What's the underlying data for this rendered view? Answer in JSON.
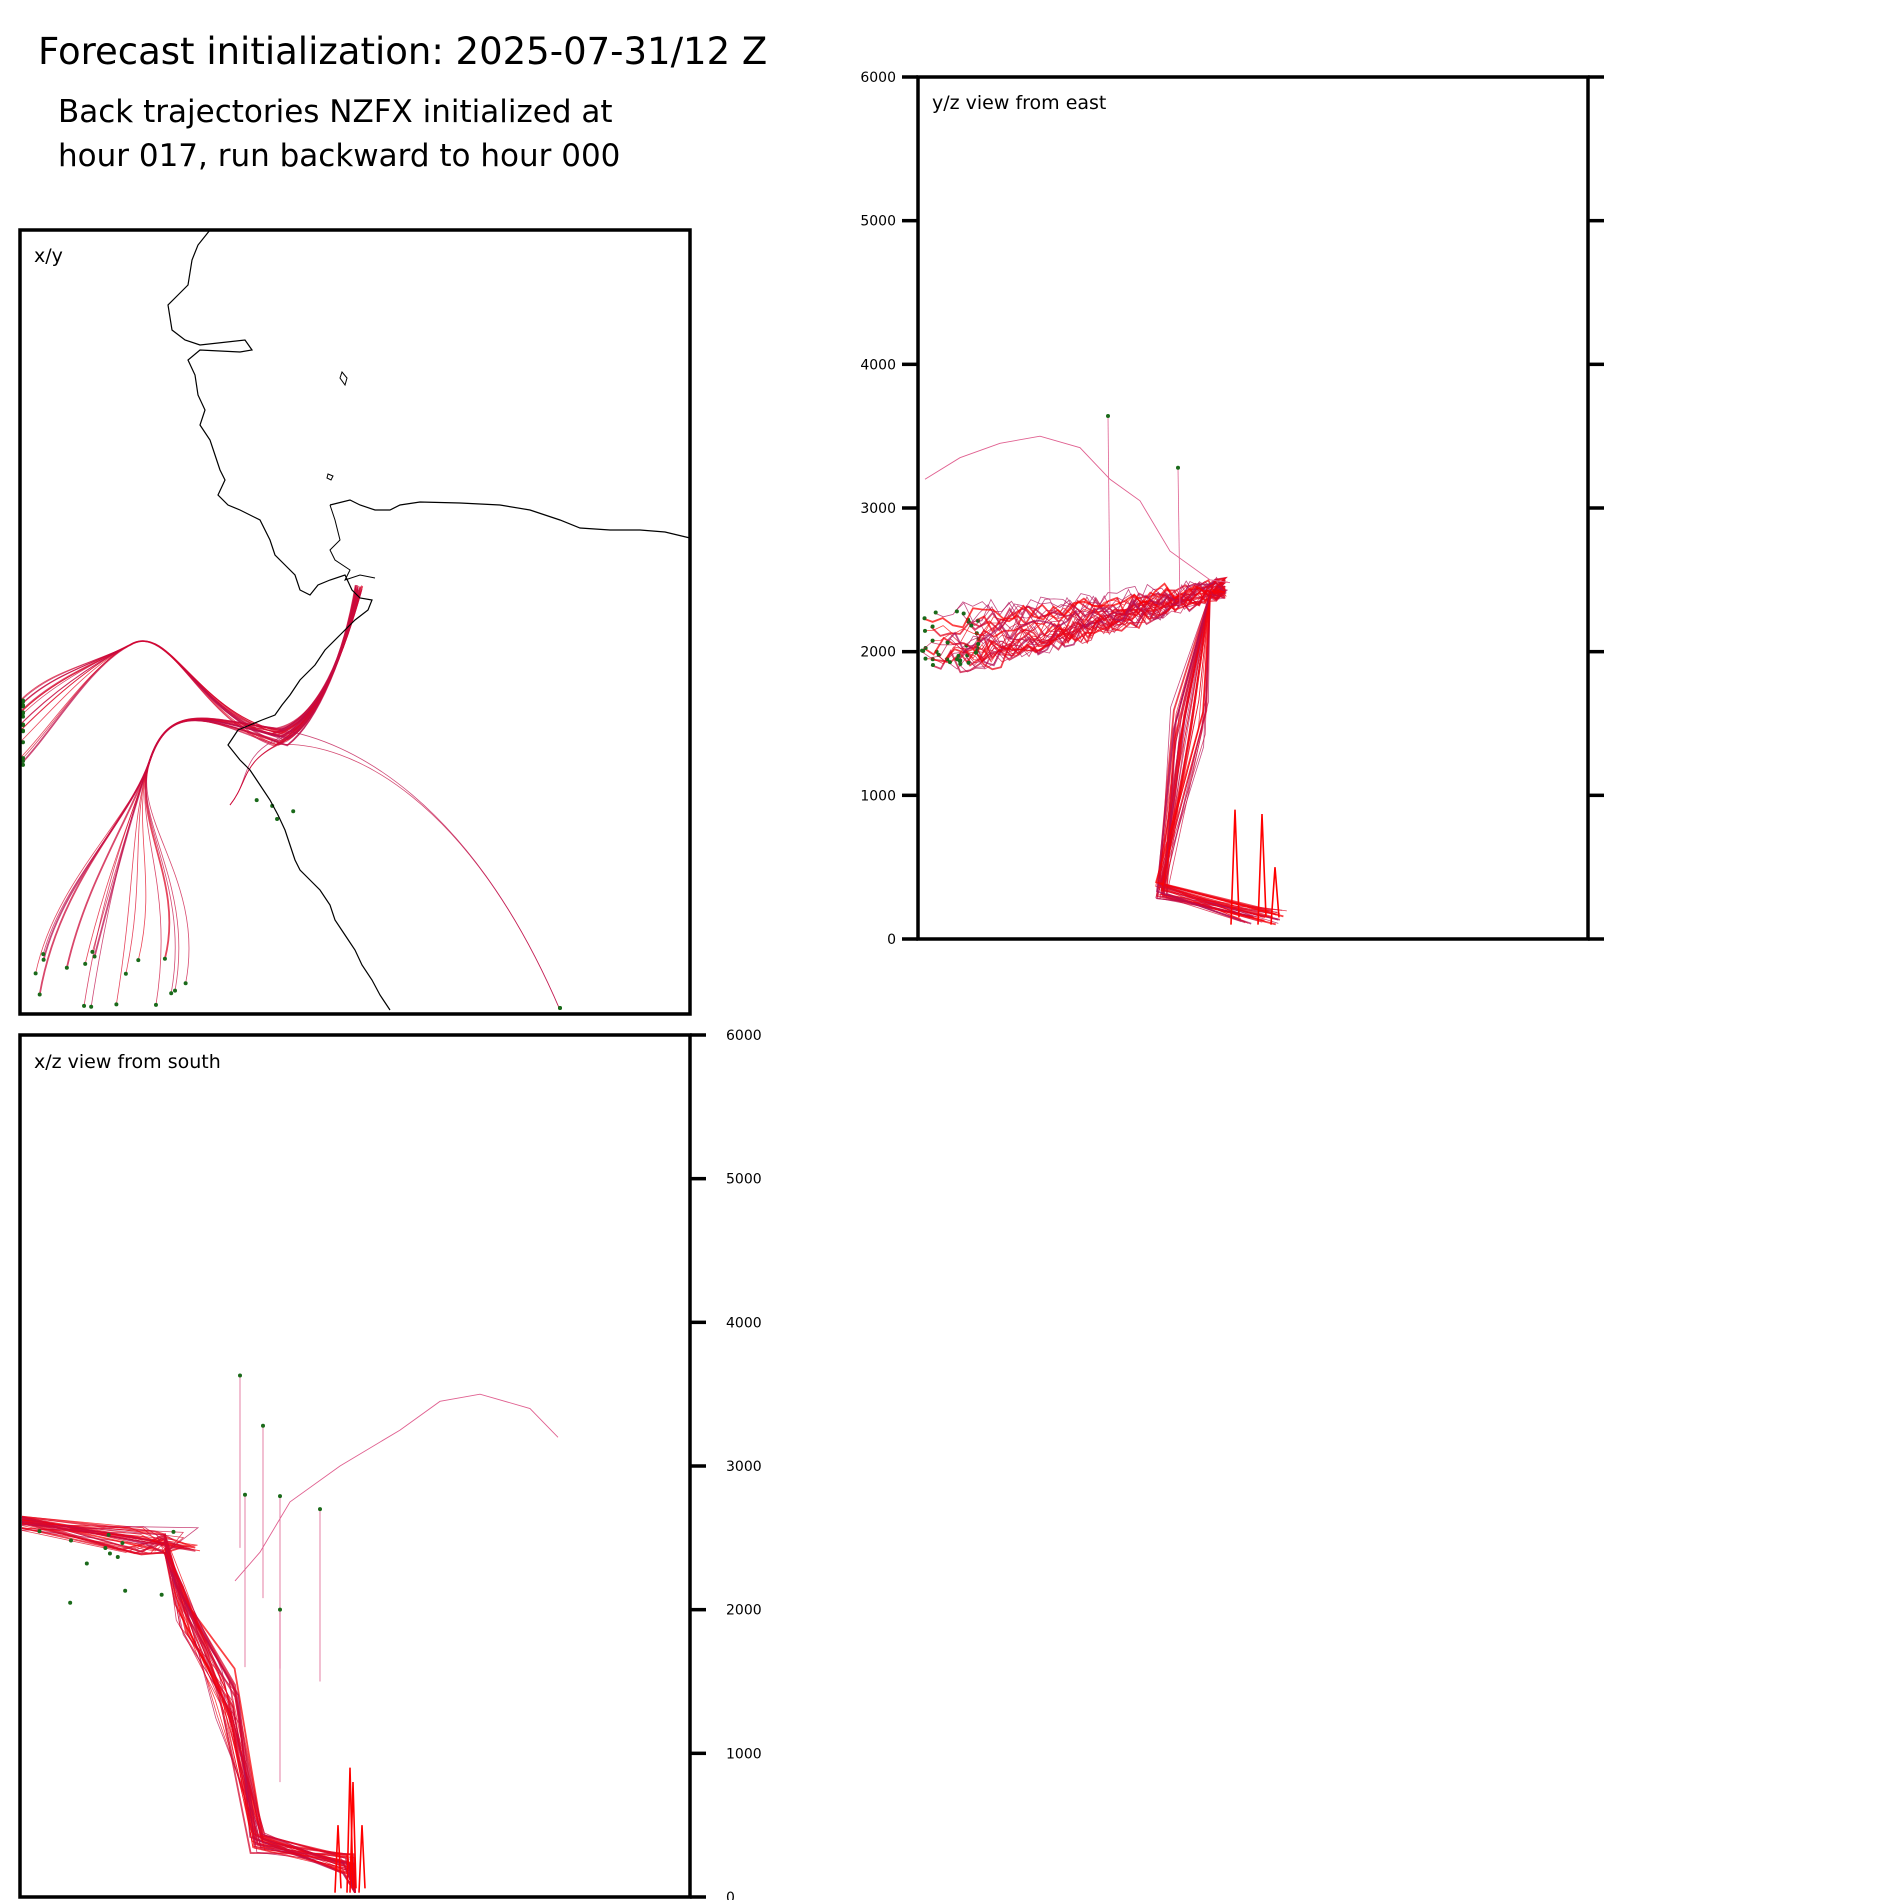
{
  "title": "Forecast initialization: 2025-07-31/12 Z",
  "subtitle_line1": "Back trajectories NZFX initialized at",
  "subtitle_line2": "hour 017, run backward to hour 000",
  "colors": {
    "late": "#ff0000",
    "early": "#b0105a",
    "start_marker": "#1a6a1a",
    "coast": "#000000"
  },
  "chart_data": [
    {
      "type": "line",
      "panel": "x/y",
      "label": "x/y",
      "description_visual": "map with coastline and trajectories",
      "series_count": 40
    },
    {
      "type": "line",
      "panel": "y/z",
      "label": "y/z view from east",
      "ylabel": "",
      "ylim": [
        0,
        6000
      ],
      "yticks": [
        "0",
        "1000",
        "2000",
        "3000",
        "4000",
        "5000",
        "6000"
      ]
    },
    {
      "type": "line",
      "panel": "x/z",
      "label": "x/z view from south",
      "ylim": [
        0,
        6000
      ],
      "yticks": [
        "0",
        "1000",
        "2000",
        "3000",
        "4000",
        "5000",
        "6000"
      ]
    }
  ]
}
